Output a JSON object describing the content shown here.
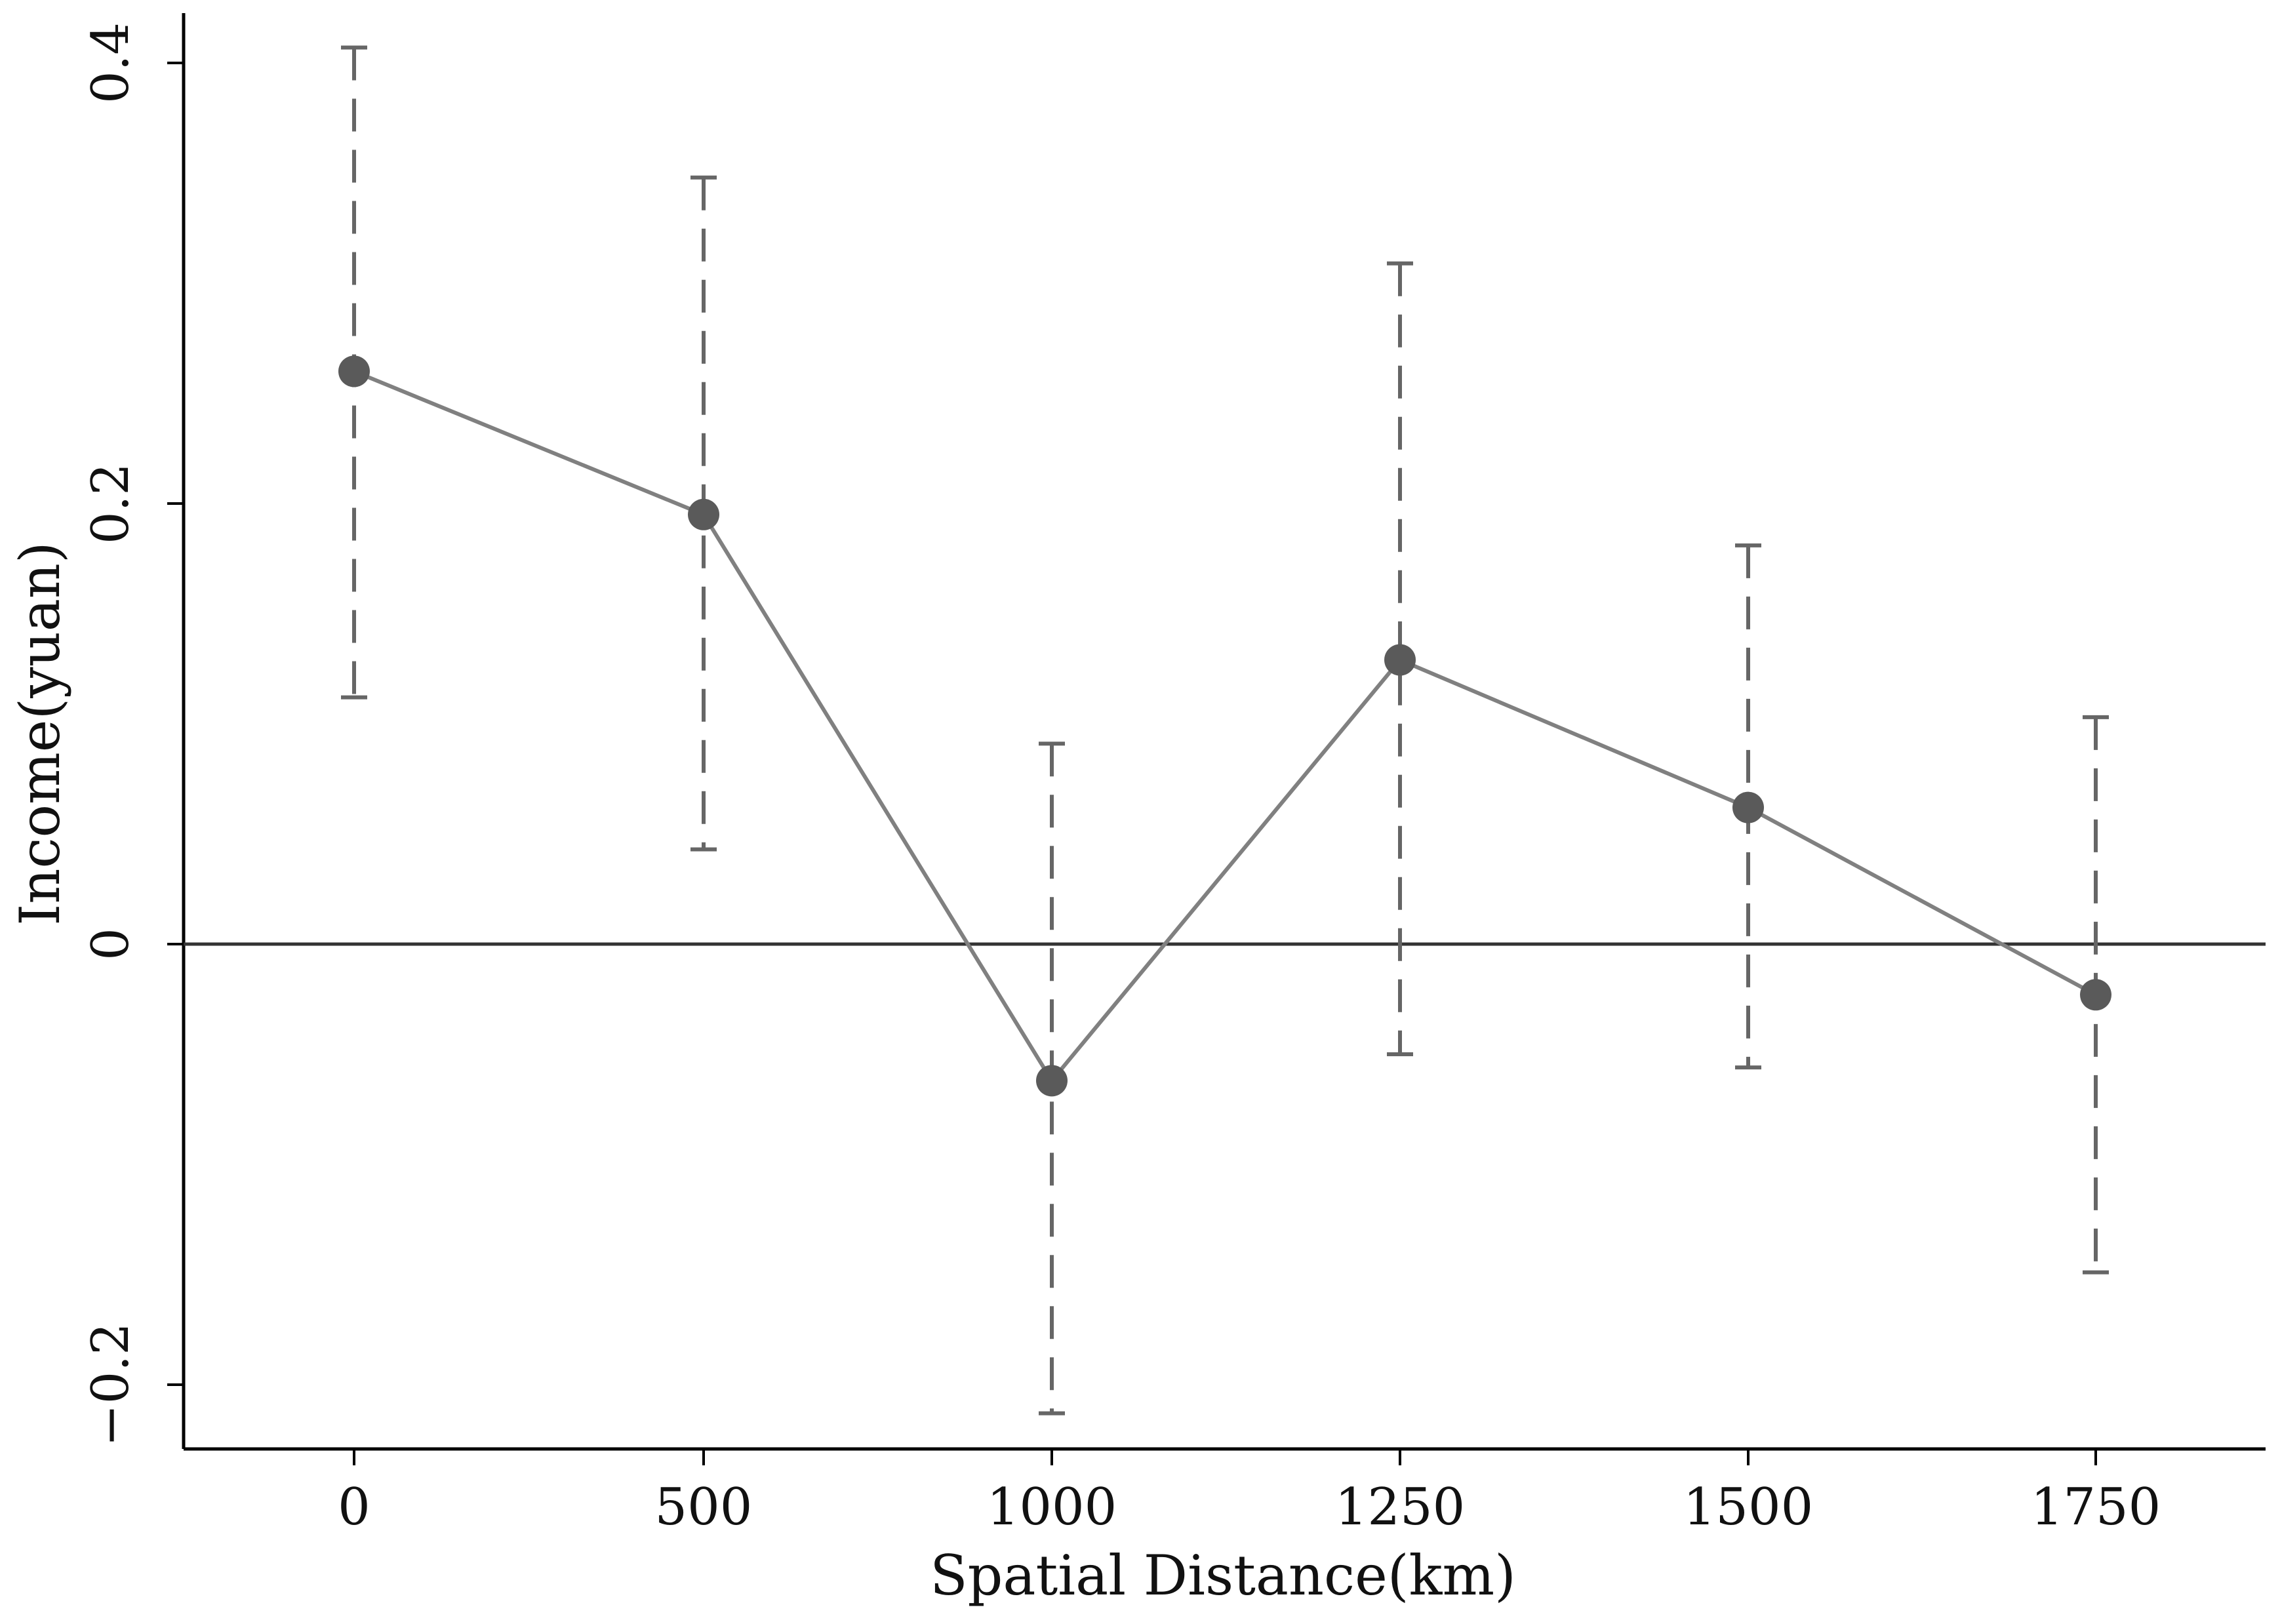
{
  "chart_data": {
    "type": "line",
    "xlabel": "Spatial Distance(km)",
    "ylabel": "Income(yuan)",
    "x_ticks": [
      "0",
      "500",
      "1000",
      "1250",
      "1500",
      "1750"
    ],
    "y_ticks": [
      {
        "value": -0.2,
        "label": "−0.2"
      },
      {
        "value": 0,
        "label": "0"
      },
      {
        "value": 0.2,
        "label": "0.2"
      },
      {
        "value": 0.4,
        "label": "0.4"
      }
    ],
    "ylim": [
      -0.23,
      0.425
    ],
    "reference_line_y": 0,
    "grid": false,
    "series": [
      {
        "x": [
          "0",
          "500",
          "1000",
          "1250",
          "1500",
          "1750"
        ],
        "values": [
          0.26,
          0.195,
          -0.062,
          0.129,
          0.062,
          -0.023
        ],
        "ci_upper": [
          0.407,
          0.348,
          0.091,
          0.309,
          0.181,
          0.103
        ],
        "ci_lower": [
          0.112,
          0.043,
          -0.213,
          -0.05,
          -0.056,
          -0.149
        ]
      }
    ],
    "colors": {
      "line": "#808080",
      "marker": "#5a5a5a",
      "error_bar": "#666666",
      "reference_line": "#333333",
      "axis": "#000000"
    }
  }
}
